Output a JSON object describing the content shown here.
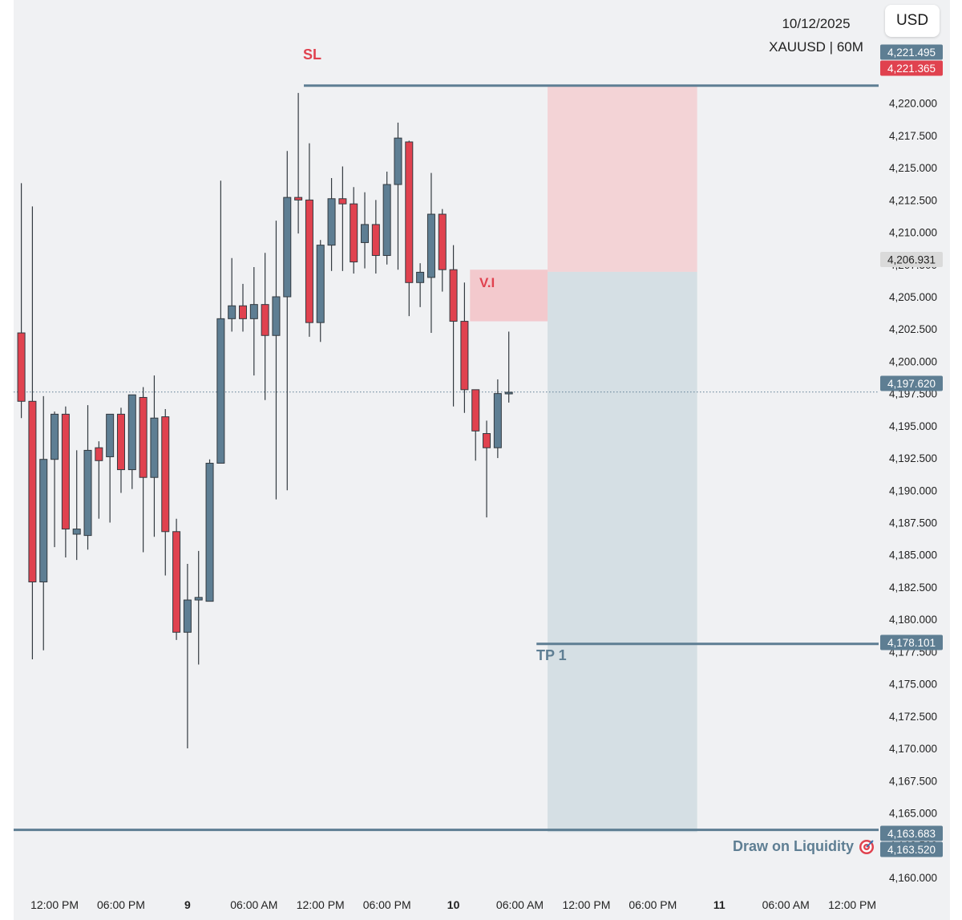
{
  "header": {
    "date": "10/12/2025",
    "symbol": "XAUUSD | 60M",
    "currency_button": "USD"
  },
  "colors": {
    "background": "#f0f1f3",
    "bull": "#5e7e93",
    "bear": "#e0424f",
    "wick": "#333a40",
    "sl_zone": "#f3d3d6",
    "tp_zone": "#d5dfe4",
    "vi_zone": "#f3c9cd",
    "axis_text": "#222222"
  },
  "annotations": {
    "sl": "SL",
    "vi": "V.I",
    "tp1": "TP 1",
    "draw_on_liquidity": "Draw on Liquidity",
    "dol_icon": "target-icon"
  },
  "chart_data": {
    "type": "candlestick",
    "symbol": "XAUUSD",
    "timeframe": "60M",
    "ylim": [
      4159,
      4228
    ],
    "y_ticks": [
      "4,220.000",
      "4,217.500",
      "4,215.000",
      "4,212.500",
      "4,210.000",
      "4,207.500",
      "4,205.000",
      "4,202.500",
      "4,200.000",
      "4,197.500",
      "4,195.000",
      "4,192.500",
      "4,190.000",
      "4,187.500",
      "4,185.000",
      "4,182.500",
      "4,180.000",
      "4,177.500",
      "4,175.000",
      "4,172.500",
      "4,170.000",
      "4,167.500",
      "4,165.000",
      "4,162.500",
      "4,160.000"
    ],
    "x_ticks": [
      {
        "label": "12:00 PM",
        "bar": 3,
        "bold": false
      },
      {
        "label": "06:00 PM",
        "bar": 9,
        "bold": false
      },
      {
        "label": "9",
        "bar": 15,
        "bold": true
      },
      {
        "label": "06:00 AM",
        "bar": 21,
        "bold": false
      },
      {
        "label": "12:00 PM",
        "bar": 27,
        "bold": false
      },
      {
        "label": "06:00 PM",
        "bar": 33,
        "bold": false
      },
      {
        "label": "10",
        "bar": 39,
        "bold": true
      },
      {
        "label": "06:00 AM",
        "bar": 45,
        "bold": false
      },
      {
        "label": "12:00 PM",
        "bar": 51,
        "bold": false
      },
      {
        "label": "06:00 PM",
        "bar": 57,
        "bold": false
      },
      {
        "label": "11",
        "bar": 63,
        "bold": true
      },
      {
        "label": "06:00 AM",
        "bar": 69,
        "bold": false
      },
      {
        "label": "12:00 PM",
        "bar": 75,
        "bold": false
      }
    ],
    "candles": [
      {
        "o": 4202.2,
        "h": 4213.8,
        "l": 4195.6,
        "c": 4196.9
      },
      {
        "o": 4196.9,
        "h": 4212.0,
        "l": 4176.9,
        "c": 4182.9
      },
      {
        "o": 4182.9,
        "h": 4197.3,
        "l": 4177.6,
        "c": 4192.4
      },
      {
        "o": 4192.4,
        "h": 4196.1,
        "l": 4185.6,
        "c": 4195.9
      },
      {
        "o": 4195.9,
        "h": 4196.5,
        "l": 4184.8,
        "c": 4187.0
      },
      {
        "o": 4186.6,
        "h": 4193.1,
        "l": 4184.6,
        "c": 4187.0
      },
      {
        "o": 4186.5,
        "h": 4196.6,
        "l": 4185.4,
        "c": 4193.1
      },
      {
        "o": 4193.3,
        "h": 4193.8,
        "l": 4187.8,
        "c": 4192.3
      },
      {
        "o": 4192.6,
        "h": 4195.9,
        "l": 4187.5,
        "c": 4195.9
      },
      {
        "o": 4195.9,
        "h": 4196.4,
        "l": 4189.8,
        "c": 4191.6
      },
      {
        "o": 4191.6,
        "h": 4197.4,
        "l": 4190.1,
        "c": 4197.4
      },
      {
        "o": 4197.2,
        "h": 4198.0,
        "l": 4185.2,
        "c": 4191.0
      },
      {
        "o": 4191.0,
        "h": 4198.9,
        "l": 4186.4,
        "c": 4195.6
      },
      {
        "o": 4195.7,
        "h": 4196.3,
        "l": 4183.4,
        "c": 4186.8
      },
      {
        "o": 4186.8,
        "h": 4187.8,
        "l": 4178.4,
        "c": 4179.0
      },
      {
        "o": 4179.0,
        "h": 4184.3,
        "l": 4170.0,
        "c": 4181.5
      },
      {
        "o": 4181.5,
        "h": 4185.3,
        "l": 4176.5,
        "c": 4181.7
      },
      {
        "o": 4181.4,
        "h": 4192.4,
        "l": 4181.5,
        "c": 4192.1
      },
      {
        "o": 4192.1,
        "h": 4214.0,
        "l": 4192.5,
        "c": 4203.3
      },
      {
        "o": 4203.3,
        "h": 4208.0,
        "l": 4202.3,
        "c": 4204.3
      },
      {
        "o": 4204.3,
        "h": 4206.0,
        "l": 4202.3,
        "c": 4203.3
      },
      {
        "o": 4203.3,
        "h": 4207.3,
        "l": 4198.9,
        "c": 4204.4
      },
      {
        "o": 4204.4,
        "h": 4208.4,
        "l": 4197.0,
        "c": 4202.0
      },
      {
        "o": 4202.0,
        "h": 4210.9,
        "l": 4189.3,
        "c": 4205.0
      },
      {
        "o": 4205.0,
        "h": 4216.3,
        "l": 4190.0,
        "c": 4212.7
      },
      {
        "o": 4212.7,
        "h": 4220.8,
        "l": 4209.9,
        "c": 4212.5
      },
      {
        "o": 4212.5,
        "h": 4216.9,
        "l": 4201.9,
        "c": 4203.0
      },
      {
        "o": 4203.0,
        "h": 4209.4,
        "l": 4201.5,
        "c": 4209.0
      },
      {
        "o": 4209.0,
        "h": 4214.2,
        "l": 4207.0,
        "c": 4212.6
      },
      {
        "o": 4212.6,
        "h": 4215.1,
        "l": 4207.0,
        "c": 4212.2
      },
      {
        "o": 4212.2,
        "h": 4213.5,
        "l": 4206.8,
        "c": 4207.7
      },
      {
        "o": 4209.2,
        "h": 4213.1,
        "l": 4207.2,
        "c": 4210.6
      },
      {
        "o": 4210.6,
        "h": 4212.5,
        "l": 4206.8,
        "c": 4208.2
      },
      {
        "o": 4208.2,
        "h": 4214.7,
        "l": 4207.5,
        "c": 4213.7
      },
      {
        "o": 4213.7,
        "h": 4218.5,
        "l": 4207.1,
        "c": 4217.3
      },
      {
        "o": 4217.0,
        "h": 4217.1,
        "l": 4203.5,
        "c": 4206.1
      },
      {
        "o": 4206.1,
        "h": 4207.6,
        "l": 4204.2,
        "c": 4206.9
      },
      {
        "o": 4206.5,
        "h": 4214.6,
        "l": 4202.2,
        "c": 4211.4
      },
      {
        "o": 4211.4,
        "h": 4211.8,
        "l": 4205.4,
        "c": 4207.1
      },
      {
        "o": 4207.1,
        "h": 4209.0,
        "l": 4196.5,
        "c": 4203.1
      },
      {
        "o": 4203.1,
        "h": 4206.1,
        "l": 4196.0,
        "c": 4197.8
      },
      {
        "o": 4197.8,
        "h": 4197.8,
        "l": 4192.3,
        "c": 4194.6
      },
      {
        "o": 4194.4,
        "h": 4195.4,
        "l": 4187.9,
        "c": 4193.3
      },
      {
        "o": 4193.3,
        "h": 4198.6,
        "l": 4192.5,
        "c": 4197.5
      },
      {
        "o": 4197.5,
        "h": 4202.3,
        "l": 4196.8,
        "c": 4197.6
      }
    ],
    "levels": [
      {
        "name": "sl",
        "price": 4221.365,
        "label": "4,221.365",
        "label_color": "#e0424f"
      },
      {
        "name": "sl-upper",
        "price": 4221.495,
        "label": "4,221.495",
        "label_color": "#5e7e93"
      },
      {
        "name": "current",
        "price": 4197.62,
        "label": "4,197.620",
        "label_color": "#5e7e93"
      },
      {
        "name": "entry",
        "price": 4206.931,
        "label": "4,206.931",
        "label_color": "#dadada"
      },
      {
        "name": "tp1",
        "price": 4178.101,
        "label": "4,178.101",
        "label_color": "#5e7e93"
      },
      {
        "name": "dol-upper",
        "price": 4163.683,
        "label": "4,163.683",
        "label_color": "#5e7e93"
      },
      {
        "name": "dol",
        "price": 4163.52,
        "label": "4,163.520",
        "label_color": "#5e7e93"
      }
    ],
    "zones": {
      "stop": {
        "from": 4206.931,
        "to": 4221.365,
        "bar_start": 47.5,
        "bar_end": 61
      },
      "target": {
        "from": 4163.52,
        "to": 4206.931,
        "bar_start": 47.5,
        "bar_end": 61
      },
      "vi": {
        "from": 4203.1,
        "to": 4207.1,
        "bar_start": 40.5,
        "bar_end": 47.5
      }
    }
  }
}
